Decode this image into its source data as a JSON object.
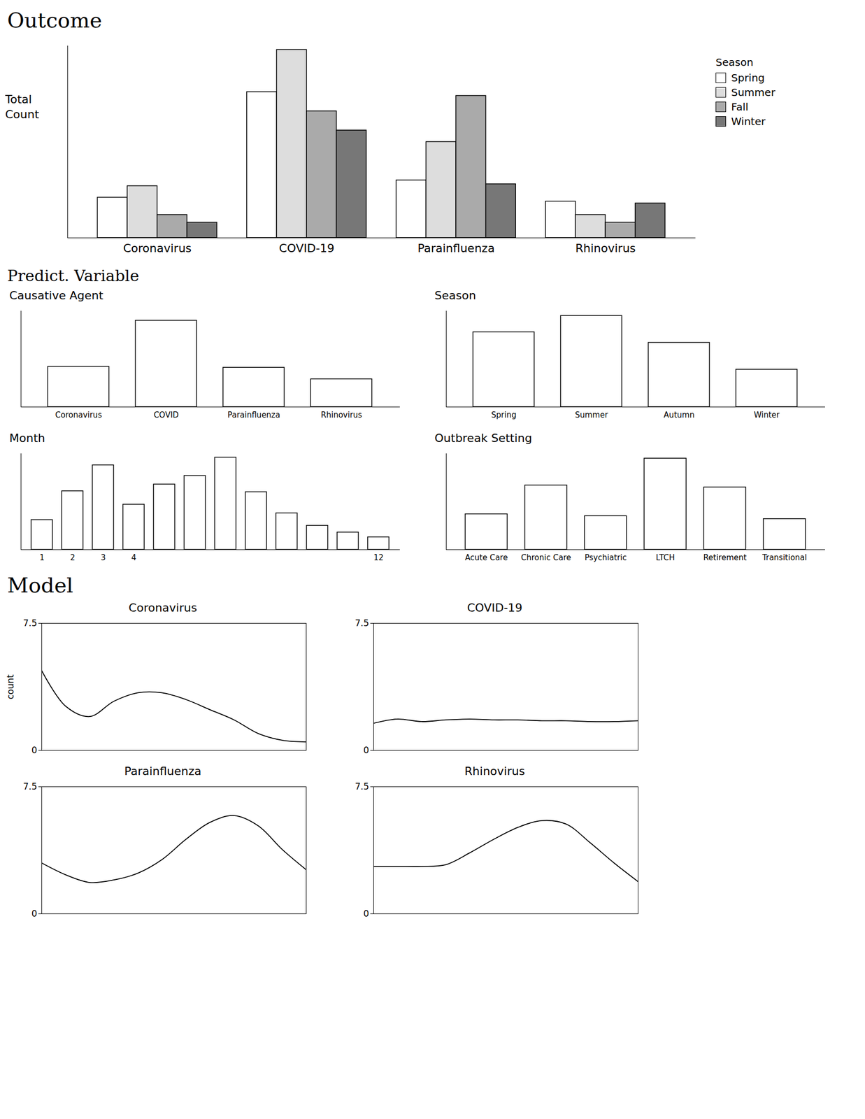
{
  "chart_data": [
    {
      "type": "bar",
      "group": "Outcome",
      "ylabel": "Total Count",
      "categories": [
        "Coronavirus",
        "COVID-19",
        "Parainfluenza",
        "Rhinovirus"
      ],
      "series": [
        {
          "name": "Spring",
          "color": "#ffffff",
          "values": [
            21,
            76,
            30,
            19
          ]
        },
        {
          "name": "Summer",
          "color": "#dddddd",
          "values": [
            27,
            98,
            50,
            12
          ]
        },
        {
          "name": "Fall",
          "color": "#aaaaaa",
          "values": [
            12,
            66,
            74,
            8
          ]
        },
        {
          "name": "Winter",
          "color": "#777777",
          "values": [
            8,
            56,
            28,
            18
          ]
        }
      ],
      "ylim": [
        0,
        100
      ],
      "tick_labels": "x",
      "legend": "right",
      "legend_title": "Season"
    },
    {
      "type": "bar",
      "group": "Predict. Variable",
      "title": "Causative Agent",
      "categories": [
        "Coronavirus",
        "COVID",
        "Parainfluenza",
        "Rhinovirus"
      ],
      "values": [
        42,
        90,
        41,
        29
      ],
      "color": "#ffffff",
      "ylim": [
        0,
        100
      ],
      "tick_labels": "x"
    },
    {
      "type": "bar",
      "group": "Predict. Variable",
      "title": "Season",
      "categories": [
        "Spring",
        "Summer",
        "Autumn",
        "Winter"
      ],
      "values": [
        78,
        95,
        67,
        39
      ],
      "color": "#ffffff",
      "ylim": [
        0,
        100
      ],
      "tick_labels": "x"
    },
    {
      "type": "bar",
      "group": "Predict. Variable",
      "title": "Month",
      "categories": [
        "1",
        "2",
        "3",
        "4",
        null,
        null,
        null,
        null,
        null,
        null,
        null,
        "12"
      ],
      "values": [
        31,
        61,
        88,
        47,
        68,
        77,
        96,
        60,
        38,
        25,
        18,
        13
      ],
      "color": "#ffffff",
      "ylim": [
        0,
        100
      ],
      "tick_labels": "x"
    },
    {
      "type": "bar",
      "group": "Predict. Variable",
      "title": "Outbreak Setting",
      "categories": [
        "Acute Care",
        "Chronic Care",
        "Psychiatric",
        "LTCH",
        "Retirement",
        "Transitional"
      ],
      "values": [
        37,
        67,
        35,
        95,
        65,
        32
      ],
      "color": "#ffffff",
      "ylim": [
        0,
        100
      ],
      "tick_labels": "x"
    },
    {
      "type": "line",
      "group": "Model",
      "title": "Coronavirus",
      "ylabel": "count",
      "x": [
        1,
        2,
        3,
        4,
        5,
        6,
        7,
        8,
        9,
        10,
        11,
        12
      ],
      "values": [
        4.7,
        2.6,
        2.0,
        2.9,
        3.4,
        3.4,
        3.0,
        2.4,
        1.8,
        1.0,
        0.6,
        0.5
      ],
      "color": "#000000",
      "xlim": [
        1,
        12
      ],
      "ylim": [
        0,
        7.5
      ],
      "yticks": [
        0,
        7.5
      ],
      "tick_labels": "y"
    },
    {
      "type": "line",
      "group": "Model",
      "title": "COVID-19",
      "x": [
        1,
        2,
        3,
        4,
        5,
        6,
        7,
        8,
        9,
        10,
        11,
        12
      ],
      "values": [
        1.6,
        1.85,
        1.7,
        1.8,
        1.85,
        1.8,
        1.8,
        1.75,
        1.75,
        1.7,
        1.7,
        1.75
      ],
      "color": "#000000",
      "xlim": [
        1,
        12
      ],
      "ylim": [
        0,
        7.5
      ],
      "yticks": [
        0,
        7.5
      ],
      "tick_labels": "y"
    },
    {
      "type": "line",
      "group": "Model",
      "title": "Parainfluenza",
      "x": [
        1,
        2,
        3,
        4,
        5,
        6,
        7,
        8,
        9,
        10,
        11,
        12
      ],
      "values": [
        3.0,
        2.3,
        1.85,
        2.0,
        2.4,
        3.2,
        4.4,
        5.4,
        5.8,
        5.2,
        3.8,
        2.6
      ],
      "color": "#000000",
      "xlim": [
        1,
        12
      ],
      "ylim": [
        0,
        7.5
      ],
      "yticks": [
        0,
        7.5
      ],
      "tick_labels": "y"
    },
    {
      "type": "line",
      "group": "Model",
      "title": "Rhinovirus",
      "x": [
        1,
        2,
        3,
        4,
        5,
        6,
        7,
        8,
        9,
        10,
        11,
        12
      ],
      "values": [
        2.8,
        2.8,
        2.8,
        2.9,
        3.6,
        4.4,
        5.1,
        5.5,
        5.3,
        4.2,
        3.0,
        1.9
      ],
      "color": "#000000",
      "xlim": [
        1,
        12
      ],
      "ylim": [
        0,
        7.5
      ],
      "yticks": [
        0,
        7.5
      ],
      "tick_labels": "y"
    }
  ]
}
